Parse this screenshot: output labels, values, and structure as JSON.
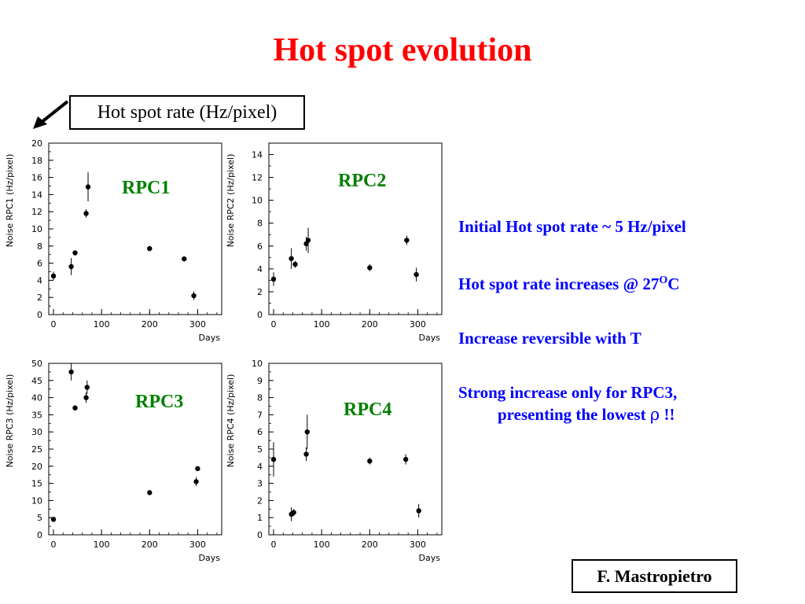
{
  "slide": {
    "title": "Hot spot evolution",
    "rate_box_label": "Hot spot rate (Hz/pixel)",
    "author": "F. Mastropietro",
    "notes": {
      "line1": "Initial Hot spot rate ~ 5 Hz/pixel",
      "line2_text": "Hot spot rate increases @ 27",
      "line2_sup": "O",
      "line2_end": "C",
      "line3": "Increase reversible with T",
      "line4": "Strong increase only for RPC3,",
      "line5_text": "presenting the lowest ",
      "line5_symbol": "ρ",
      "line5_end": " !!"
    },
    "colors": {
      "title": "#ff0000",
      "notes": "#0000ff",
      "rpc_labels": "#008000"
    }
  },
  "chart_data": [
    {
      "type": "scatter",
      "label": "RPC1",
      "ylabel": "Noise RPC1 (Hz/pixel)",
      "xlabel": "Days",
      "xlim": [
        0,
        350
      ],
      "ylim": [
        0,
        20
      ],
      "xticks": [
        0,
        100,
        200,
        300
      ],
      "yticks": [
        0,
        2,
        4,
        6,
        8,
        10,
        12,
        14,
        16,
        18,
        20
      ],
      "points": [
        {
          "x": 0,
          "y": 4.5,
          "err": 0.5
        },
        {
          "x": 37,
          "y": 5.6,
          "err": 1.0
        },
        {
          "x": 45,
          "y": 7.2,
          "err": 0.3
        },
        {
          "x": 68,
          "y": 11.8,
          "err": 0.5
        },
        {
          "x": 72,
          "y": 14.9,
          "err": 1.7
        },
        {
          "x": 200,
          "y": 7.7,
          "err": 0.3
        },
        {
          "x": 272,
          "y": 6.5,
          "err": 0.3
        },
        {
          "x": 292,
          "y": 2.2,
          "err": 0.5
        }
      ]
    },
    {
      "type": "scatter",
      "label": "RPC2",
      "ylabel": "Noise RPC2 (Hz/pixel)",
      "xlabel": "Days",
      "xlim": [
        0,
        350
      ],
      "ylim": [
        0,
        15
      ],
      "xticks": [
        0,
        100,
        200,
        300
      ],
      "yticks": [
        0,
        2,
        4,
        6,
        8,
        10,
        12,
        14
      ],
      "points": [
        {
          "x": 0,
          "y": 3.1,
          "err": 0.6
        },
        {
          "x": 37,
          "y": 4.9,
          "err": 0.9
        },
        {
          "x": 45,
          "y": 4.4,
          "err": 0.3
        },
        {
          "x": 68,
          "y": 6.2,
          "err": 0.6
        },
        {
          "x": 72,
          "y": 6.5,
          "err": 1.1
        },
        {
          "x": 200,
          "y": 4.1,
          "err": 0.3
        },
        {
          "x": 277,
          "y": 6.5,
          "err": 0.4
        },
        {
          "x": 297,
          "y": 3.5,
          "err": 0.6
        }
      ]
    },
    {
      "type": "scatter",
      "label": "RPC3",
      "ylabel": "Noise RPC3 (Hz/pixel)",
      "xlabel": "Days",
      "xlim": [
        0,
        350
      ],
      "ylim": [
        0,
        50
      ],
      "xticks": [
        0,
        100,
        200,
        300
      ],
      "yticks": [
        0,
        5,
        10,
        15,
        20,
        25,
        30,
        35,
        40,
        45,
        50
      ],
      "points": [
        {
          "x": 0,
          "y": 4.5,
          "err": 0.6
        },
        {
          "x": 37,
          "y": 47.5,
          "err": 2.5
        },
        {
          "x": 45,
          "y": 37.0,
          "err": 0.8
        },
        {
          "x": 68,
          "y": 40.0,
          "err": 1.5
        },
        {
          "x": 70,
          "y": 43.0,
          "err": 2.0
        },
        {
          "x": 200,
          "y": 12.3,
          "err": 0.6
        },
        {
          "x": 297,
          "y": 15.5,
          "err": 1.3
        },
        {
          "x": 300,
          "y": 19.3,
          "err": 0.6
        }
      ]
    },
    {
      "type": "scatter",
      "label": "RPC4",
      "ylabel": "Noise RPC4 (Hz/pixel)",
      "xlabel": "Days",
      "xlim": [
        0,
        350
      ],
      "ylim": [
        0,
        10
      ],
      "xticks": [
        0,
        100,
        200,
        300
      ],
      "yticks": [
        0,
        1,
        2,
        3,
        4,
        5,
        6,
        7,
        8,
        9,
        10
      ],
      "points": [
        {
          "x": 0,
          "y": 4.4,
          "err": 1.0
        },
        {
          "x": 37,
          "y": 1.2,
          "err": 0.4
        },
        {
          "x": 42,
          "y": 1.3,
          "err": 0.2
        },
        {
          "x": 68,
          "y": 4.7,
          "err": 0.4
        },
        {
          "x": 70,
          "y": 6.0,
          "err": 1.0
        },
        {
          "x": 200,
          "y": 4.3,
          "err": 0.2
        },
        {
          "x": 275,
          "y": 4.4,
          "err": 0.3
        },
        {
          "x": 302,
          "y": 1.4,
          "err": 0.4
        }
      ]
    }
  ]
}
